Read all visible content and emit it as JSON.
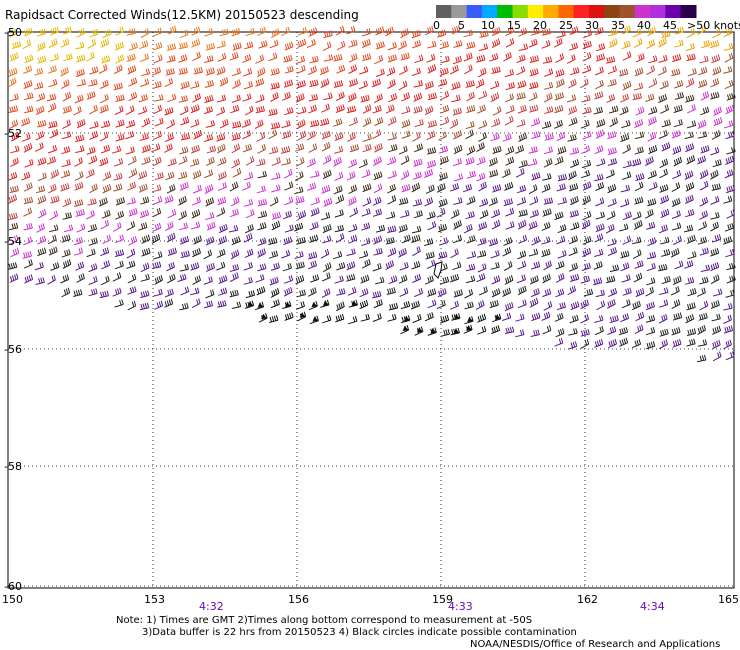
{
  "title": "Rapidsact Corrected Winds(12.5KM) 20150523 descending",
  "legend": {
    "ticks": [
      "0",
      "5",
      "10",
      "15",
      "20",
      "25",
      "30",
      "35",
      "40",
      "45",
      ">50 knots"
    ],
    "colors": [
      "#606060",
      "#9a9a9a",
      "#3a5cff",
      "#00aaff",
      "#00bb00",
      "#88dd00",
      "#ffee00",
      "#ffaa00",
      "#ff6600",
      "#ff2222",
      "#dd1111",
      "#8b4513",
      "#a0522d",
      "#cc33cc",
      "#b030e0",
      "#6a00aa",
      "#2b004d"
    ]
  },
  "axes": {
    "lat_labels": [
      "-50",
      "-52",
      "-54",
      "-56",
      "-58",
      "-60"
    ],
    "lon_labels": [
      "150",
      "153",
      "156",
      "159",
      "162",
      "165"
    ]
  },
  "times": [
    "4:32",
    "4:33",
    "4:34"
  ],
  "notes": {
    "line1": "Note: 1) Times are GMT 2)Times along bottom correspond to measurement at -50S",
    "line2": "3)Data buffer is 22 hrs from 20150523 4) Black circles indicate possible contamination",
    "line3": "NOAA/NESDIS/Office of Research and Applications"
  }
}
